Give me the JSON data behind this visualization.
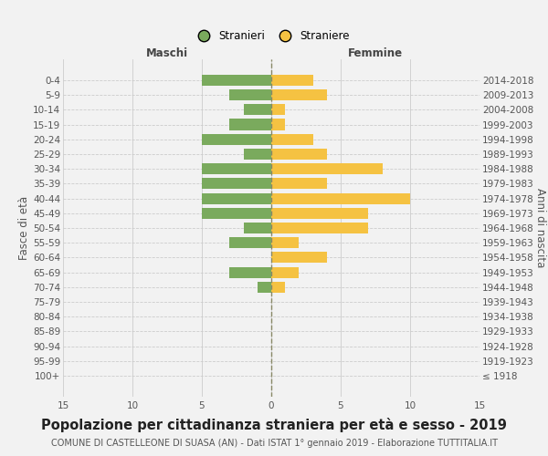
{
  "age_groups": [
    "100+",
    "95-99",
    "90-94",
    "85-89",
    "80-84",
    "75-79",
    "70-74",
    "65-69",
    "60-64",
    "55-59",
    "50-54",
    "45-49",
    "40-44",
    "35-39",
    "30-34",
    "25-29",
    "20-24",
    "15-19",
    "10-14",
    "5-9",
    "0-4"
  ],
  "birth_years": [
    "≤ 1918",
    "1919-1923",
    "1924-1928",
    "1929-1933",
    "1934-1938",
    "1939-1943",
    "1944-1948",
    "1949-1953",
    "1954-1958",
    "1959-1963",
    "1964-1968",
    "1969-1973",
    "1974-1978",
    "1979-1983",
    "1984-1988",
    "1989-1993",
    "1994-1998",
    "1999-2003",
    "2004-2008",
    "2009-2013",
    "2014-2018"
  ],
  "males": [
    0,
    0,
    0,
    0,
    0,
    0,
    1,
    3,
    0,
    3,
    2,
    5,
    5,
    5,
    5,
    2,
    5,
    3,
    2,
    3,
    5
  ],
  "females": [
    0,
    0,
    0,
    0,
    0,
    0,
    1,
    2,
    4,
    2,
    7,
    7,
    10,
    4,
    8,
    4,
    3,
    1,
    1,
    4,
    3
  ],
  "male_color": "#7aaa5d",
  "female_color": "#f5c242",
  "background_color": "#f2f2f2",
  "grid_color": "#cccccc",
  "title": "Popolazione per cittadinanza straniera per età e sesso - 2019",
  "subtitle": "COMUNE DI CASTELLEONE DI SUASA (AN) - Dati ISTAT 1° gennaio 2019 - Elaborazione TUTTITALIA.IT",
  "xlabel_left": "Maschi",
  "xlabel_right": "Femmine",
  "ylabel_left": "Fasce di età",
  "ylabel_right": "Anni di nascita",
  "legend_male": "Stranieri",
  "legend_female": "Straniere",
  "xlim": 15,
  "bar_height": 0.75,
  "title_fontsize": 10.5,
  "subtitle_fontsize": 7,
  "tick_fontsize": 7.5,
  "label_fontsize": 8.5,
  "legend_fontsize": 8.5
}
